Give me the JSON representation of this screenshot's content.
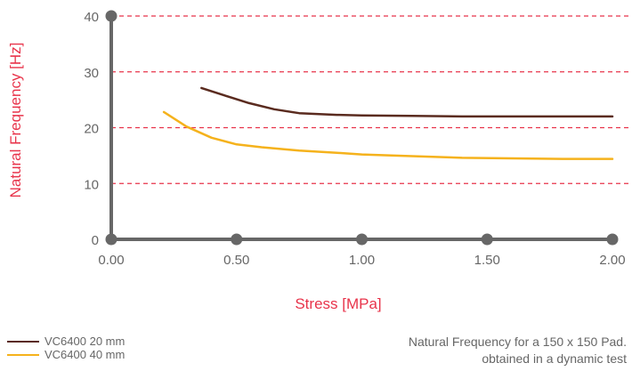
{
  "chart_data": {
    "type": "line",
    "xlabel": "Stress [MPa]",
    "ylabel": "Natural Frequency [Hz]",
    "xlim": [
      0,
      2
    ],
    "ylim": [
      0,
      40
    ],
    "x_ticks": [
      "0.00",
      "0.50",
      "1.00",
      "1.50",
      "2.00"
    ],
    "y_ticks": [
      "0",
      "10",
      "20",
      "30",
      "40"
    ],
    "grid": "horizontal dashed",
    "legend_position": "bottom-left",
    "series": [
      {
        "name": "VC6400 20 mm",
        "color": "#5a2b1f",
        "points": [
          [
            0.36,
            27.1
          ],
          [
            0.45,
            25.8
          ],
          [
            0.55,
            24.4
          ],
          [
            0.65,
            23.3
          ],
          [
            0.75,
            22.6
          ],
          [
            0.9,
            22.3
          ],
          [
            1.0,
            22.2
          ],
          [
            1.2,
            22.1
          ],
          [
            1.4,
            22.0
          ],
          [
            1.6,
            22.0
          ],
          [
            1.8,
            22.0
          ],
          [
            2.0,
            22.0
          ]
        ]
      },
      {
        "name": "VC6400 40 mm",
        "color": "#f5b21c",
        "points": [
          [
            0.21,
            22.8
          ],
          [
            0.3,
            20.2
          ],
          [
            0.4,
            18.2
          ],
          [
            0.5,
            17.0
          ],
          [
            0.6,
            16.5
          ],
          [
            0.75,
            15.9
          ],
          [
            0.9,
            15.5
          ],
          [
            1.0,
            15.2
          ],
          [
            1.2,
            14.9
          ],
          [
            1.4,
            14.6
          ],
          [
            1.6,
            14.5
          ],
          [
            1.8,
            14.4
          ],
          [
            2.0,
            14.4
          ]
        ]
      }
    ]
  },
  "caption": {
    "line1": "Natural Frequency for a 150 x 150 Pad.",
    "line2": "obtained in a dynamic test"
  },
  "colors": {
    "axis": "#676767",
    "grid": "#e8334a",
    "label": "#e8334a",
    "text": "#666666"
  }
}
